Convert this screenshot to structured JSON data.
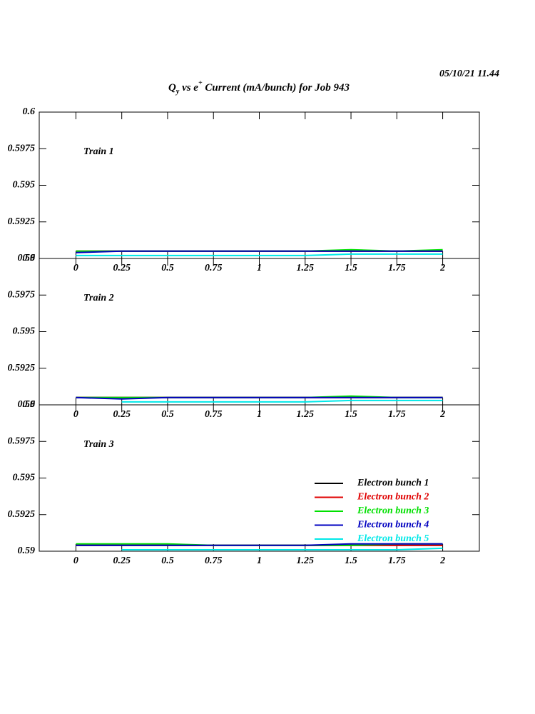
{
  "header": {
    "timestamp": "05/10/21  11.44",
    "title": [
      "Q",
      "y",
      " vs e",
      "+",
      " Current (mA/bunch) for Job 943"
    ]
  },
  "chart_data": [
    {
      "type": "line",
      "annotation": "Train 1",
      "x": [
        0,
        0.25,
        0.5,
        0.75,
        1,
        1.25,
        1.5,
        1.75,
        2
      ],
      "series": [
        {
          "name": "Electron bunch 1",
          "color": "#000000",
          "values": [
            0.5905,
            0.5905,
            0.5905,
            0.5905,
            0.5905,
            0.5905,
            0.5905,
            0.5905,
            0.5905
          ]
        },
        {
          "name": "Electron bunch 2",
          "color": "#e00000",
          "values": [
            0.5905,
            0.5905,
            0.5905,
            0.5905,
            0.5905,
            0.5905,
            0.5905,
            0.5905,
            0.5905
          ]
        },
        {
          "name": "Electron bunch 3",
          "color": "#00e000",
          "values": [
            0.5905,
            0.5905,
            0.5905,
            0.5905,
            0.5905,
            0.5905,
            0.5906,
            0.5905,
            0.5906
          ]
        },
        {
          "name": "Electron bunch 4",
          "color": "#0000c0",
          "values": [
            0.5904,
            0.5905,
            0.5905,
            0.5905,
            0.5905,
            0.5905,
            0.5905,
            0.5905,
            0.5905
          ]
        },
        {
          "name": "Electron bunch 5",
          "color": "#00e8e8",
          "values": [
            0.5902,
            0.5902,
            0.5902,
            0.5902,
            0.5902,
            0.5902,
            0.5903,
            0.5903,
            0.5903
          ]
        }
      ],
      "xlim": [
        -0.2,
        2.2
      ],
      "ylim": [
        0.59,
        0.6
      ],
      "xticks": [
        0,
        0.25,
        0.5,
        0.75,
        1,
        1.25,
        1.5,
        1.75,
        2
      ],
      "yticks": [
        0.59,
        0.5925,
        0.595,
        0.5975,
        0.6
      ]
    },
    {
      "type": "line",
      "annotation": "Train 2",
      "x": [
        0,
        0.25,
        0.5,
        0.75,
        1,
        1.25,
        1.5,
        1.75,
        2
      ],
      "series": [
        {
          "name": "Electron bunch 1",
          "color": "#000000",
          "values": [
            0.5905,
            0.5905,
            0.5905,
            0.5905,
            0.5905,
            0.5905,
            0.5905,
            0.5905,
            0.5905
          ]
        },
        {
          "name": "Electron bunch 2",
          "color": "#e00000",
          "values": [
            0.5905,
            0.5905,
            0.5905,
            0.5905,
            0.5905,
            0.5905,
            0.5905,
            0.5905,
            0.5905
          ]
        },
        {
          "name": "Electron bunch 3",
          "color": "#00e000",
          "values": [
            0.5905,
            0.5905,
            0.5905,
            0.5905,
            0.5905,
            0.5905,
            0.5906,
            0.5905,
            0.5905
          ]
        },
        {
          "name": "Electron bunch 4",
          "color": "#0000c0",
          "values": [
            0.5905,
            0.5904,
            0.5905,
            0.5905,
            0.5905,
            0.5905,
            0.5905,
            0.5905,
            0.5905
          ]
        },
        {
          "name": "Electron bunch 5",
          "color": "#00e8e8",
          "values": [
            null,
            0.5902,
            0.5902,
            0.5902,
            0.5902,
            0.5902,
            0.5903,
            0.5903,
            0.5903
          ]
        }
      ],
      "xlim": [
        -0.2,
        2.2
      ],
      "ylim": [
        0.59,
        0.6
      ],
      "xticks": [
        0,
        0.25,
        0.5,
        0.75,
        1,
        1.25,
        1.5,
        1.75,
        2
      ],
      "yticks": [
        0.59,
        0.5925,
        0.595,
        0.5975,
        0.6
      ]
    },
    {
      "type": "line",
      "annotation": "Train 3",
      "legend": "lower right",
      "x": [
        0,
        0.25,
        0.5,
        0.75,
        1,
        1.25,
        1.5,
        1.75,
        2
      ],
      "series": [
        {
          "name": "Electron bunch 1",
          "color": "#000000",
          "values": [
            0.5904,
            0.5904,
            0.5904,
            0.5904,
            0.5904,
            0.5904,
            0.5904,
            0.5904,
            0.5904
          ]
        },
        {
          "name": "Electron bunch 2",
          "color": "#e00000",
          "values": [
            0.5904,
            0.5904,
            0.5904,
            0.5904,
            0.5904,
            0.5904,
            0.5904,
            0.5904,
            0.5904
          ]
        },
        {
          "name": "Electron bunch 3",
          "color": "#00e000",
          "values": [
            0.5905,
            0.5905,
            0.5905,
            0.5904,
            0.5904,
            0.5904,
            0.5904,
            0.5905,
            0.5905
          ]
        },
        {
          "name": "Electron bunch 4",
          "color": "#0000c0",
          "values": [
            0.5904,
            0.5904,
            0.5904,
            0.5904,
            0.5904,
            0.5904,
            0.5905,
            0.5905,
            0.5905
          ]
        },
        {
          "name": "Electron bunch 5",
          "color": "#00e8e8",
          "values": [
            null,
            0.5901,
            0.5901,
            0.5901,
            0.5901,
            0.5901,
            0.5901,
            0.5901,
            0.5902
          ]
        }
      ],
      "xlim": [
        -0.2,
        2.2
      ],
      "ylim": [
        0.59,
        0.6
      ],
      "xticks": [
        0,
        0.25,
        0.5,
        0.75,
        1,
        1.25,
        1.5,
        1.75,
        2
      ],
      "yticks": [
        0.59,
        0.5925,
        0.595,
        0.5975,
        0.6
      ]
    }
  ]
}
